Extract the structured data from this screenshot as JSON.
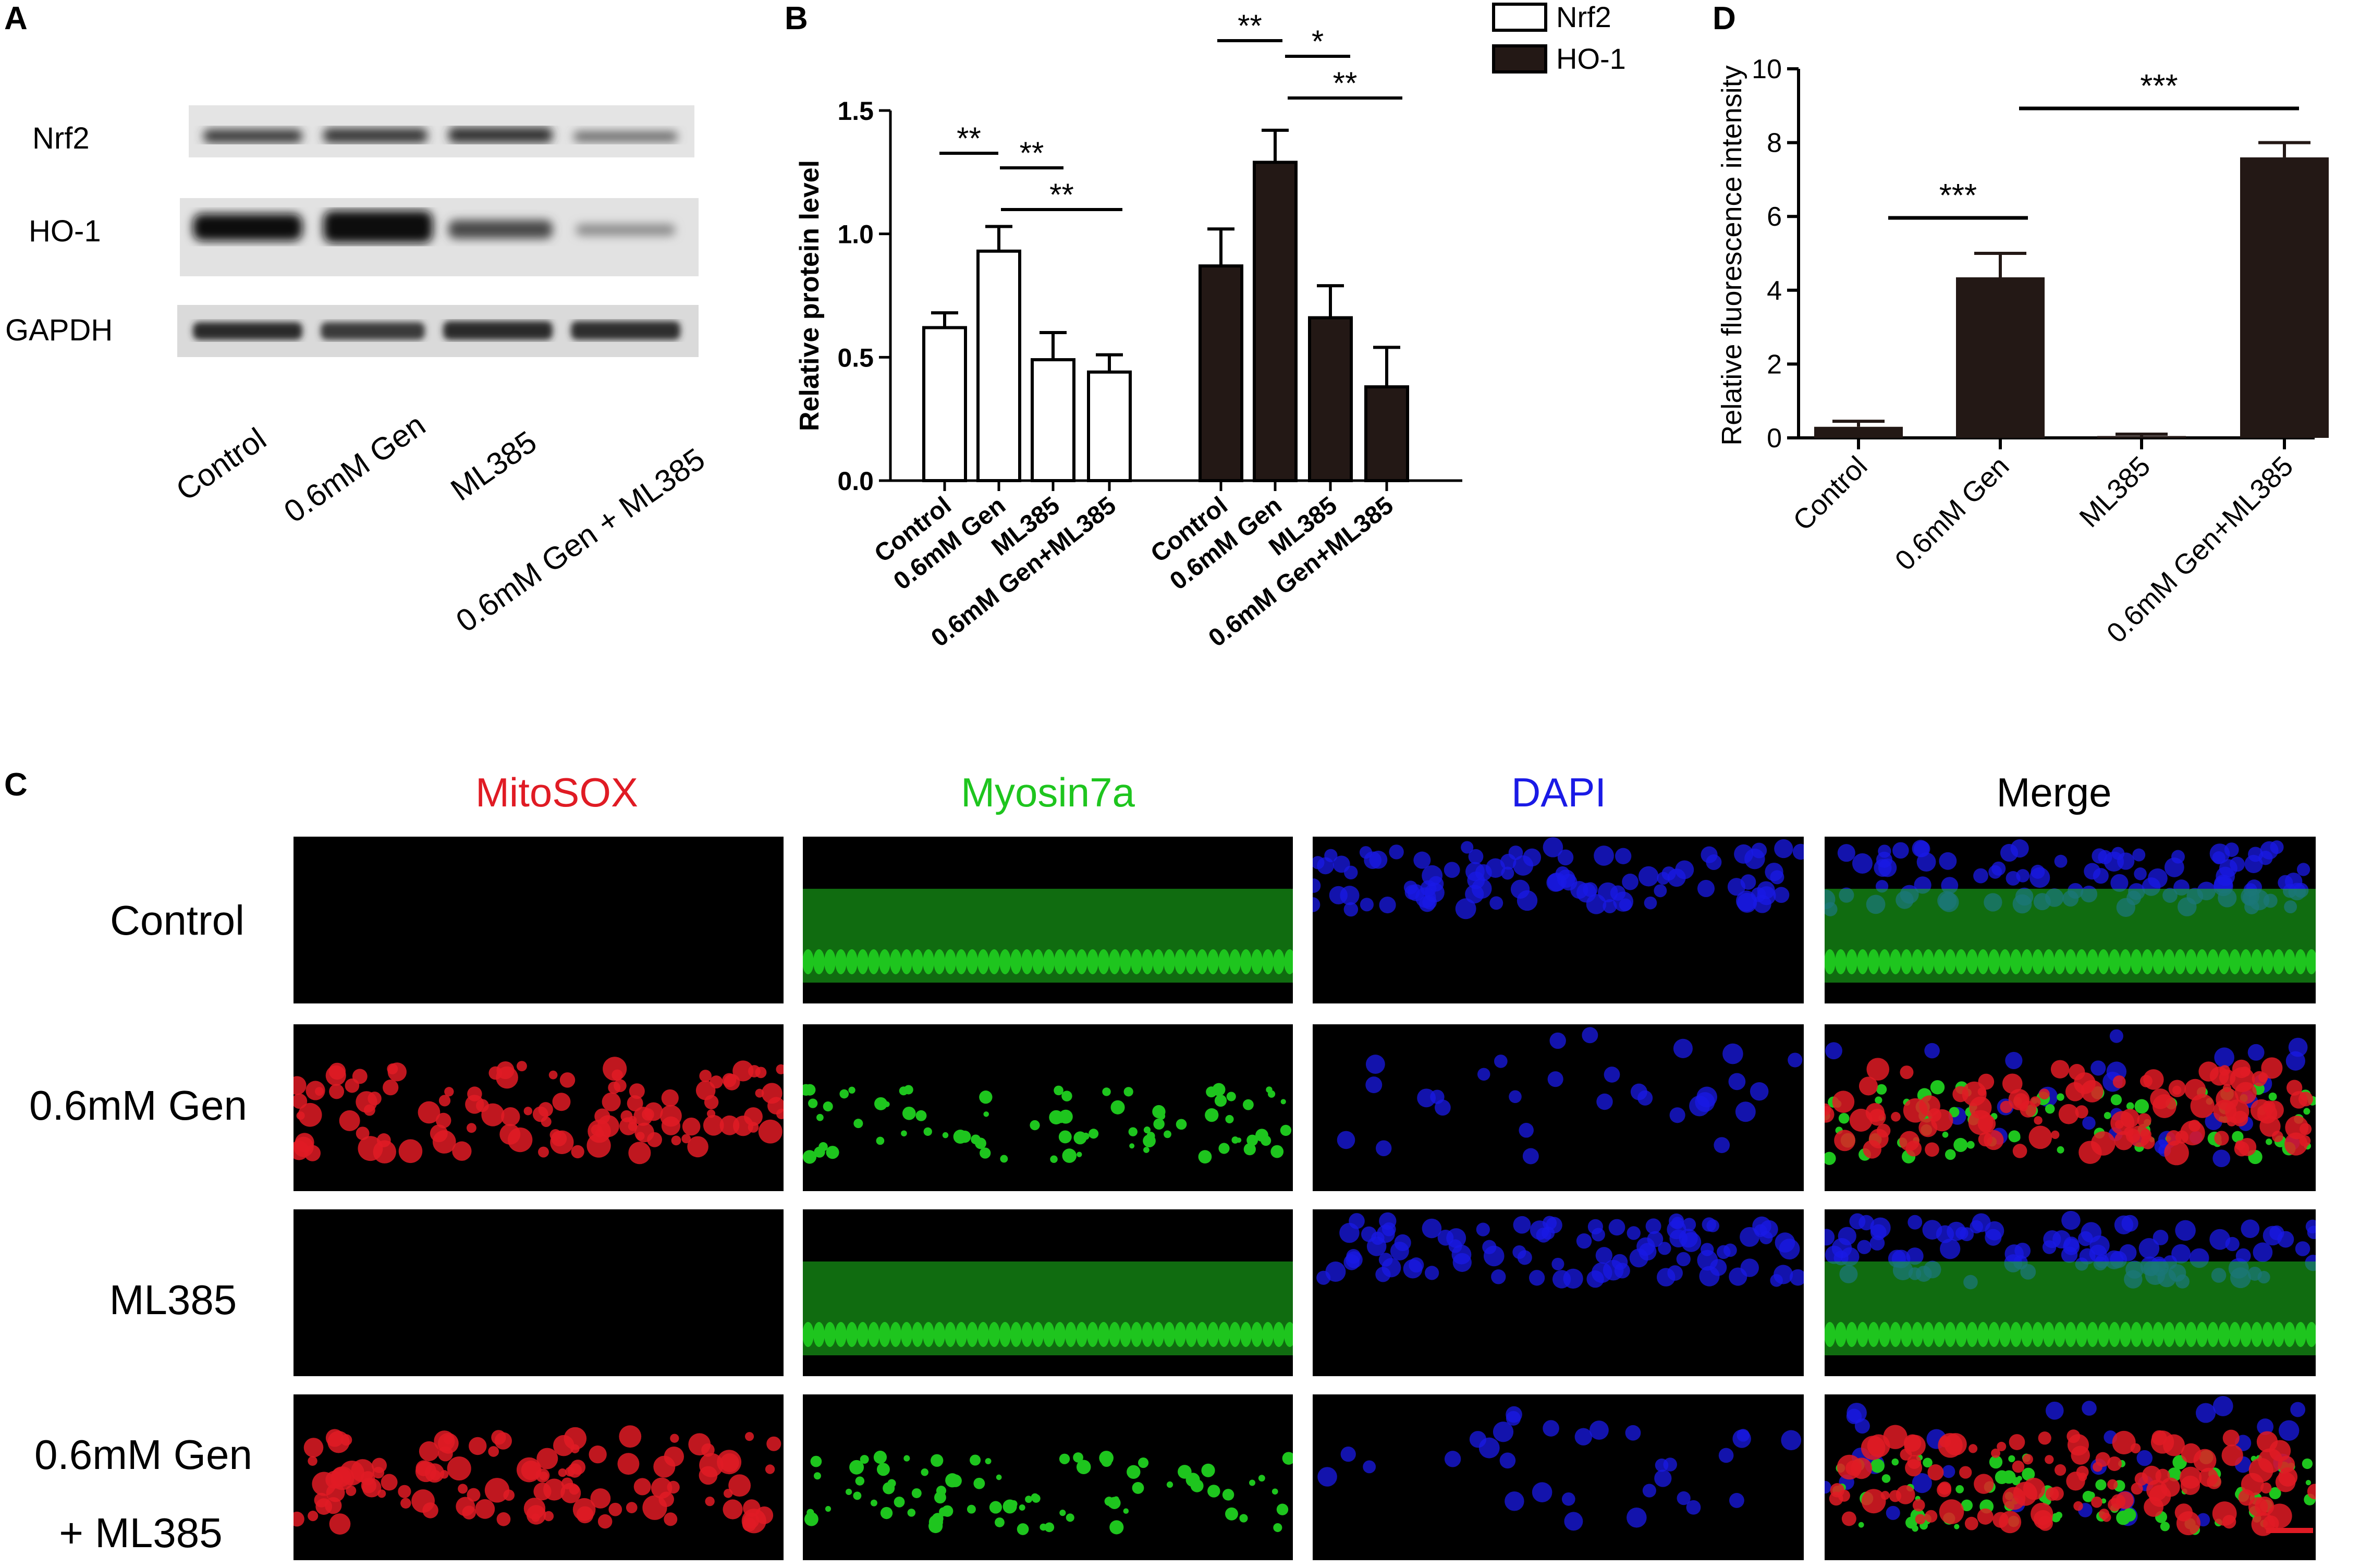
{
  "panelA": {
    "letter": "A",
    "proteins": [
      "Nrf2",
      "HO-1",
      "GAPDH"
    ],
    "lanes": [
      "Control",
      "0.6mM Gen",
      "ML385",
      "0.6mM Gen + ML385"
    ]
  },
  "panelB": {
    "letter": "B",
    "legend": [
      "Nrf2",
      "HO-1"
    ],
    "sig": {
      "nrf2_ctrl_gen": "**",
      "nrf2_gen_ml": "**",
      "nrf2_gen_combo": "**",
      "ho1_ctrl_gen": "**",
      "ho1_gen_ml": "*",
      "ho1_gen_combo": "**"
    }
  },
  "panelC": {
    "letter": "C",
    "channels": [
      "MitoSOX",
      "Myosin7a",
      "DAPI",
      "Merge"
    ],
    "rows": [
      "Control",
      "0.6mM Gen",
      "ML385",
      "0.6mM Gen",
      "+ ML385"
    ]
  },
  "panelD": {
    "letter": "D",
    "sig": {
      "ctrl_gen": "***",
      "ml_combo": "***"
    }
  },
  "colors": {
    "bar_dark": "#231815",
    "mitosox": "#e01b24",
    "myosin": "#1ec51e",
    "dapi": "#1a1ae6"
  },
  "chart_data": [
    {
      "type": "bar",
      "panel": "B",
      "ylabel": "Relative protein level",
      "ylim": [
        0,
        1.5
      ],
      "yticks": [
        "0.0",
        "0.5",
        "1.0",
        "1.5"
      ],
      "categories": [
        "Control",
        "0.6mM Gen",
        "ML385",
        "0.6mM Gen+ML385"
      ],
      "series": [
        {
          "name": "Nrf2",
          "values": [
            0.62,
            0.93,
            0.49,
            0.44
          ],
          "errors": [
            0.06,
            0.1,
            0.11,
            0.07
          ],
          "fill": "white"
        },
        {
          "name": "HO-1",
          "values": [
            0.87,
            1.29,
            0.66,
            0.38
          ],
          "errors": [
            0.15,
            0.13,
            0.13,
            0.16
          ],
          "fill": "black"
        }
      ],
      "legend_position": "top-right"
    },
    {
      "type": "bar",
      "panel": "D",
      "ylabel": "Relative fluorescence intensity",
      "ylim": [
        0,
        10
      ],
      "yticks": [
        "0",
        "2",
        "4",
        "6",
        "8",
        "10"
      ],
      "categories": [
        "Control",
        "0.6mM Gen",
        "ML385",
        "0.6mM Gen+ML385"
      ],
      "values": [
        0.3,
        4.35,
        0.05,
        7.6
      ],
      "errors": [
        0.15,
        0.65,
        0.05,
        0.4
      ]
    }
  ]
}
